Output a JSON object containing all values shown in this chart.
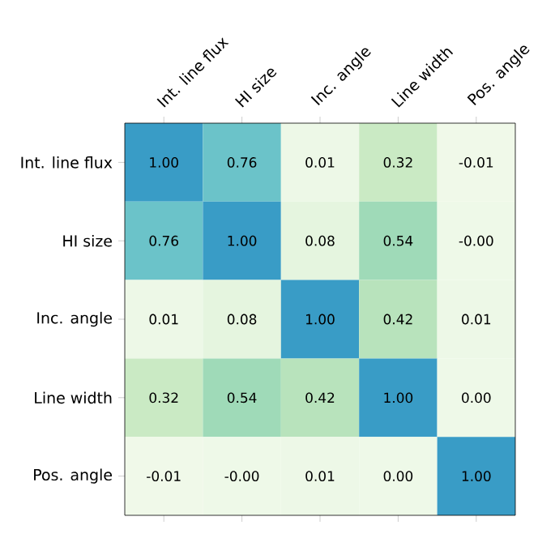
{
  "chart_data": {
    "type": "heatmap",
    "categories": [
      "Int. line flux",
      "HI size",
      "Inc. angle",
      "Line width",
      "Pos. angle"
    ],
    "y_categories": [
      "Int. line flux",
      "HI size",
      "Inc. angle",
      "Line width",
      "Pos. angle"
    ],
    "cells": [
      [
        1.0,
        0.76,
        0.01,
        0.32,
        -0.01
      ],
      [
        0.76,
        1.0,
        0.08,
        0.54,
        -0.0
      ],
      [
        0.01,
        0.08,
        1.0,
        0.42,
        0.01
      ],
      [
        0.32,
        0.54,
        0.42,
        1.0,
        0.0
      ],
      [
        -0.01,
        -0.0,
        0.01,
        0.0,
        1.0
      ]
    ],
    "cell_labels": [
      [
        "1.00",
        "0.76",
        "0.01",
        "0.32",
        "-0.01"
      ],
      [
        "0.76",
        "1.00",
        "0.08",
        "0.54",
        "-0.00"
      ],
      [
        "0.01",
        "0.08",
        "1.00",
        "0.42",
        "0.01"
      ],
      [
        "0.32",
        "0.54",
        "0.42",
        "1.00",
        "0.00"
      ],
      [
        "-0.01",
        "-0.00",
        "0.01",
        "0.00",
        "1.00"
      ]
    ]
  }
}
